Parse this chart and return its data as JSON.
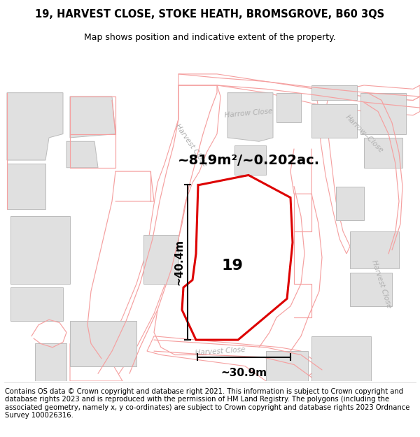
{
  "title_line1": "19, HARVEST CLOSE, STOKE HEATH, BROMSGROVE, B60 3QS",
  "title_line2": "Map shows position and indicative extent of the property.",
  "footer_text": "Contains OS data © Crown copyright and database right 2021. This information is subject to Crown copyright and database rights 2023 and is reproduced with the permission of HM Land Registry. The polygons (including the associated geometry, namely x, y co-ordinates) are subject to Crown copyright and database rights 2023 Ordnance Survey 100026316.",
  "area_label": "~819m²/~0.202ac.",
  "height_label": "~40.4m",
  "width_label": "~30.9m",
  "plot_number": "19",
  "map_bg": "#f7f7f7",
  "plot_fill": "#ffffff",
  "plot_edge": "#dd0000",
  "building_fill": "#e0e0e0",
  "building_edge": "#bbbbbb",
  "road_line_color": "#f5a0a0",
  "road_fill_color": "#ffffff",
  "road_text_color": "#b0b0b0",
  "dim_line_color": "#111111",
  "title_fontsize": 10.5,
  "subtitle_fontsize": 9.0,
  "footer_fontsize": 7.2,
  "area_fontsize": 14,
  "dim_fontsize": 11,
  "plot_label_fontsize": 16
}
